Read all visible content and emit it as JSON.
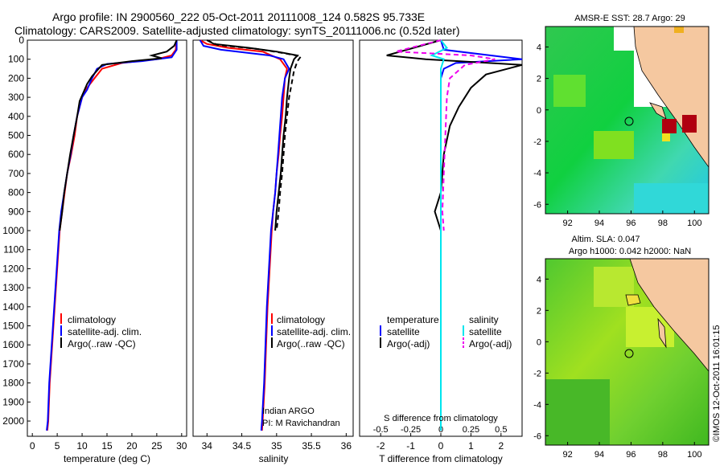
{
  "header": {
    "line1": "Argo profile: IN 2900560_222 05-Oct-2011 20111008_124 0.582S 95.733E",
    "line2": "Climatology: CARS2009. Satellite-adjusted climatology: synTS_20111006.nc (0.52d later)"
  },
  "colors": {
    "climatology": "#ff0000",
    "satellite": "#0000ff",
    "argo": "#000000",
    "sal_satellite": "#00e5ee",
    "sal_argo": "#ee00ee",
    "land": "#f5c8a0"
  },
  "chart_data": [
    {
      "type": "line",
      "panel": "temperature",
      "xlabel": "temperature (deg C)",
      "xlim": [
        -1,
        31
      ],
      "xticks": [
        0,
        5,
        10,
        15,
        20,
        25,
        30
      ],
      "ylim": [
        2080,
        0
      ],
      "yticks": [
        0,
        100,
        200,
        300,
        400,
        500,
        600,
        700,
        800,
        900,
        1000,
        1100,
        1200,
        1300,
        1400,
        1500,
        1600,
        1700,
        1800,
        1900,
        2000
      ],
      "legend": [
        "climatology",
        "satellite-adj. clim.",
        "Argo(..raw -QC)"
      ],
      "series": [
        {
          "name": "climatology",
          "color": "#ff0000",
          "dashed": false,
          "points": [
            [
              29,
              0
            ],
            [
              28.8,
              50
            ],
            [
              28,
              80
            ],
            [
              25,
              100
            ],
            [
              18,
              120
            ],
            [
              14,
              150
            ],
            [
              12.5,
              200
            ],
            [
              11,
              250
            ],
            [
              10,
              300
            ],
            [
              9,
              400
            ],
            [
              8.5,
              500
            ],
            [
              7.8,
              600
            ],
            [
              7,
              700
            ],
            [
              6.5,
              800
            ],
            [
              6,
              900
            ],
            [
              5.5,
              1000
            ],
            [
              5,
              1200
            ],
            [
              4.5,
              1400
            ],
            [
              4,
              1600
            ],
            [
              3.5,
              1800
            ],
            [
              3.2,
              2000
            ],
            [
              3,
              2050
            ]
          ]
        },
        {
          "name": "satellite-adj. clim.",
          "color": "#0000ff",
          "dashed": false,
          "points": [
            [
              29,
              0
            ],
            [
              29,
              50
            ],
            [
              28,
              90
            ],
            [
              22,
              110
            ],
            [
              15,
              125
            ],
            [
              13,
              150
            ],
            [
              12,
              200
            ],
            [
              11,
              260
            ],
            [
              10,
              300
            ],
            [
              9,
              400
            ],
            [
              8.3,
              500
            ],
            [
              7.7,
              600
            ],
            [
              7,
              700
            ],
            [
              6.4,
              800
            ],
            [
              5.8,
              900
            ],
            [
              5.4,
              1000
            ],
            [
              4.9,
              1200
            ],
            [
              4.4,
              1400
            ],
            [
              3.9,
              1600
            ],
            [
              3.4,
              1800
            ],
            [
              3.1,
              2000
            ],
            [
              2.9,
              2050
            ]
          ]
        },
        {
          "name": "Argo(..raw -QC)",
          "color": "#000000",
          "dashed": false,
          "points": [
            [
              29,
              0
            ],
            [
              28.5,
              30
            ],
            [
              27,
              60
            ],
            [
              24,
              80
            ],
            [
              26,
              95
            ],
            [
              20,
              110
            ],
            [
              14,
              130
            ],
            [
              13,
              160
            ],
            [
              12,
              190
            ],
            [
              11,
              230
            ],
            [
              10.5,
              260
            ],
            [
              9.5,
              320
            ],
            [
              9,
              400
            ],
            [
              8.3,
              500
            ],
            [
              7.6,
              600
            ],
            [
              7,
              700
            ],
            [
              6.4,
              800
            ],
            [
              6,
              900
            ],
            [
              5.5,
              1000
            ]
          ]
        }
      ]
    },
    {
      "type": "line",
      "panel": "salinity",
      "xlabel": "salinity",
      "xlim": [
        33.8,
        36.1
      ],
      "xticks": [
        34,
        34.5,
        35,
        35.5,
        36
      ],
      "legend": [
        "climatology",
        "satellite-adj. clim.",
        "Argo(..raw -QC)"
      ],
      "annotation": [
        "Indian ARGO",
        "PI: M Ravichandran"
      ],
      "series": [
        {
          "name": "climatology",
          "color": "#ff0000",
          "dashed": false,
          "points": [
            [
              33.9,
              0
            ],
            [
              34.0,
              20
            ],
            [
              34.3,
              40
            ],
            [
              34.8,
              60
            ],
            [
              35.05,
              100
            ],
            [
              35.15,
              150
            ],
            [
              35.12,
              200
            ],
            [
              35.1,
              300
            ],
            [
              35.08,
              400
            ],
            [
              35.05,
              500
            ],
            [
              35.03,
              600
            ],
            [
              35.0,
              700
            ],
            [
              34.98,
              800
            ],
            [
              34.95,
              900
            ],
            [
              34.93,
              1000
            ],
            [
              34.9,
              1200
            ],
            [
              34.87,
              1400
            ],
            [
              34.85,
              1600
            ],
            [
              34.83,
              1800
            ],
            [
              34.8,
              2000
            ],
            [
              34.79,
              2050
            ]
          ]
        },
        {
          "name": "satellite-adj. clim.",
          "color": "#0000ff",
          "dashed": false,
          "points": [
            [
              33.9,
              0
            ],
            [
              33.95,
              30
            ],
            [
              34.2,
              50
            ],
            [
              34.9,
              80
            ],
            [
              35.1,
              100
            ],
            [
              35.18,
              150
            ],
            [
              35.12,
              200
            ],
            [
              35.08,
              300
            ],
            [
              35.06,
              400
            ],
            [
              35.04,
              500
            ],
            [
              35.02,
              600
            ],
            [
              35.0,
              700
            ],
            [
              34.98,
              800
            ],
            [
              34.95,
              900
            ],
            [
              34.92,
              1000
            ],
            [
              34.89,
              1200
            ],
            [
              34.86,
              1400
            ],
            [
              34.84,
              1600
            ],
            [
              34.82,
              1800
            ],
            [
              34.79,
              2000
            ],
            [
              34.78,
              2050
            ]
          ]
        },
        {
          "name": "Argo(..raw -QC)",
          "color": "#000000",
          "dashed": false,
          "points": [
            [
              34.0,
              0
            ],
            [
              34.1,
              20
            ],
            [
              34.6,
              40
            ],
            [
              35.0,
              60
            ],
            [
              35.3,
              80
            ],
            [
              35.25,
              100
            ],
            [
              35.2,
              150
            ],
            [
              35.18,
              200
            ],
            [
              35.15,
              300
            ],
            [
              35.13,
              400
            ],
            [
              35.1,
              500
            ],
            [
              35.08,
              600
            ],
            [
              35.06,
              700
            ],
            [
              35.03,
              800
            ],
            [
              35.0,
              900
            ],
            [
              34.98,
              1000
            ]
          ]
        },
        {
          "name": "Argo adjusted",
          "color": "#000000",
          "dashed": true,
          "points": [
            [
              34.0,
              0
            ],
            [
              34.15,
              25
            ],
            [
              34.7,
              45
            ],
            [
              35.05,
              65
            ],
            [
              35.35,
              85
            ],
            [
              35.3,
              110
            ],
            [
              35.25,
              160
            ],
            [
              35.22,
              220
            ],
            [
              35.18,
              300
            ],
            [
              35.15,
              400
            ],
            [
              35.12,
              500
            ],
            [
              35.1,
              600
            ],
            [
              35.08,
              700
            ],
            [
              35.05,
              800
            ],
            [
              35.03,
              900
            ],
            [
              35.0,
              1000
            ]
          ]
        }
      ]
    },
    {
      "type": "line",
      "panel": "difference",
      "xlabel": "T difference from climatology",
      "xlabel_top": "S difference from climatology",
      "xlim": [
        -2.7,
        2.7
      ],
      "xticks": [
        -2,
        -1,
        0,
        1,
        2
      ],
      "xticklabels_s": [
        "-0.5",
        "-0.25",
        "0",
        "0.25",
        "0.5"
      ],
      "legend_temperature": [
        "temperature",
        "satellite",
        "Argo(-adj)"
      ],
      "legend_salinity": [
        "salinity",
        "satellite",
        "Argo(-adj)"
      ],
      "series": [
        {
          "name": "satellite (temperature)",
          "color": "#0000ff",
          "dashed": false,
          "points": [
            [
              0,
              0
            ],
            [
              0.1,
              50
            ],
            [
              2.7,
              100
            ],
            [
              0.5,
              120
            ],
            [
              0.1,
              150
            ],
            [
              0,
              200
            ],
            [
              0,
              400
            ],
            [
              0,
              1000
            ],
            [
              0,
              2050
            ]
          ]
        },
        {
          "name": "Argo(-adj) (temperature)",
          "color": "#000000",
          "dashed": false,
          "points": [
            [
              0,
              0
            ],
            [
              -1.8,
              80
            ],
            [
              -0.5,
              100
            ],
            [
              2.7,
              130
            ],
            [
              1.5,
              180
            ],
            [
              1.0,
              250
            ],
            [
              0.6,
              350
            ],
            [
              0.3,
              450
            ],
            [
              0.1,
              600
            ],
            [
              0,
              800
            ],
            [
              -0.2,
              900
            ],
            [
              0,
              1000
            ]
          ]
        },
        {
          "name": "satellite (salinity)",
          "color": "#00e5ee",
          "dashed": false,
          "points": [
            [
              0,
              0
            ],
            [
              0.2,
              40
            ],
            [
              -0.3,
              80
            ],
            [
              0.1,
              100
            ],
            [
              0,
              150
            ],
            [
              0,
              400
            ],
            [
              0,
              1000
            ],
            [
              0,
              2050
            ]
          ]
        },
        {
          "name": "Argo(-adj) (salinity)",
          "color": "#ee00ee",
          "dashed": true,
          "points": [
            [
              0,
              0
            ],
            [
              -1.5,
              60
            ],
            [
              1.0,
              80
            ],
            [
              1.8,
              100
            ],
            [
              0.8,
              130
            ],
            [
              0.3,
              200
            ],
            [
              0.2,
              300
            ],
            [
              0.15,
              500
            ],
            [
              0.1,
              700
            ],
            [
              0.05,
              900
            ],
            [
              0.1,
              1000
            ]
          ]
        }
      ]
    },
    {
      "type": "heatmap",
      "panel": "sst-map",
      "title": "AMSR-E SST: 28.7  Argo: 29",
      "xticks": [
        92,
        94,
        96,
        98,
        100
      ],
      "yticks": [
        4,
        2,
        0,
        -2,
        -4,
        -6
      ],
      "argo_position": [
        95.73,
        -0.58
      ]
    },
    {
      "type": "heatmap",
      "panel": "sla-map",
      "title": "Altim. SLA: 0.047",
      "subtitle": "Argo h1000: 0.042 h2000: NaN",
      "xticks": [
        92,
        94,
        96,
        98,
        100
      ],
      "yticks": [
        4,
        2,
        0,
        -2,
        -4,
        -6
      ],
      "argo_position": [
        95.73,
        -0.58
      ]
    }
  ],
  "side_label": "©IMOS 12-Oct-2011 16:01:15"
}
